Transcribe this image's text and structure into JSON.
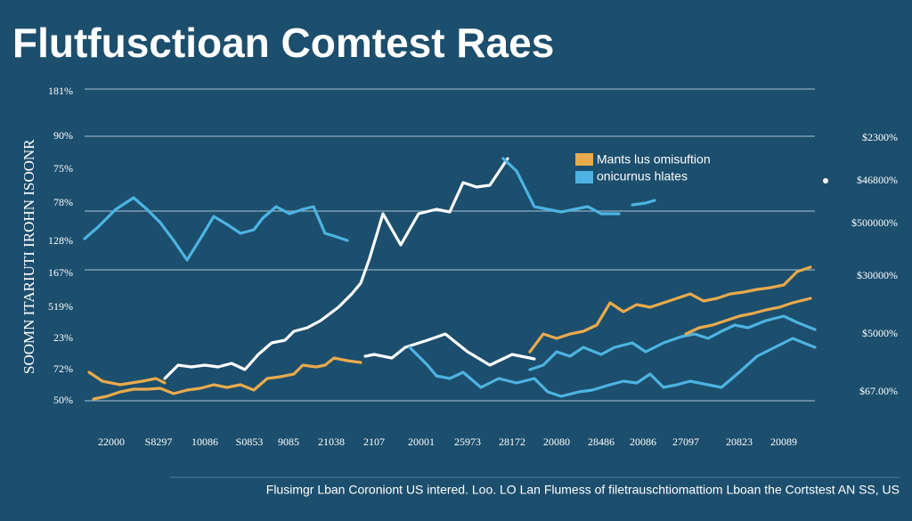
{
  "chart_data": {
    "type": "line",
    "title": "Flutfusctioan Comtest Raes",
    "y_axis_title": "SOOMN ITARIUTI IROHN ISOONR",
    "footer": "Flusimgr Lban Coroniont US  intered. Loo. LO Lan Flumess of filetrauschtiomattiom Lboan the Cortstest AN SS, US",
    "left_labels": [
      "181%",
      "90%",
      "75%",
      "78%",
      "128%",
      "167%",
      "519%",
      "23%",
      "72%",
      "50%"
    ],
    "right_labels": [
      "$2300%",
      "$46800%",
      "$500000%",
      "$30000%",
      "$5000%",
      "$67.00%"
    ],
    "x_labels": [
      "22000",
      "S8297",
      "10086",
      "S0853",
      "9085",
      "21038",
      "2107",
      "20001",
      "25973",
      "28172",
      "20080",
      "28486",
      "20086",
      "27097",
      "20823",
      "20089"
    ],
    "xlim": [
      0,
      820
    ],
    "ylim": [
      0,
      350
    ],
    "series": [
      {
        "color": "#ffffff",
        "x": [
          90,
          105,
          120,
          135,
          150,
          165,
          180,
          195,
          210,
          225,
          235,
          250,
          265,
          285,
          300,
          310,
          320,
          335,
          355,
          375,
          395,
          410,
          425,
          440,
          455,
          475,
          null,
          315,
          325,
          345,
          360,
          385,
          405,
          430,
          455,
          480,
          505
        ],
        "values": [
          25,
          40,
          38,
          40,
          38,
          42,
          35,
          52,
          65,
          68,
          78,
          82,
          90,
          105,
          120,
          132,
          160,
          210,
          175,
          210,
          215,
          212,
          245,
          240,
          242,
          272,
          null,
          50,
          52,
          48,
          60,
          68,
          75,
          55,
          40,
          52,
          47
        ]
      },
      {
        "name": "onicurnus hlates",
        "color": "#4db3e2",
        "x": [
          0,
          15,
          35,
          55,
          70,
          85,
          100,
          115,
          130,
          145,
          160,
          175,
          190,
          200,
          215,
          230,
          245,
          257,
          270,
          280,
          295,
          null,
          470,
          485,
          505,
          520,
          535,
          550,
          565,
          580,
          600,
          null,
          615,
          630,
          640,
          null,
          365,
          385,
          395,
          410,
          425,
          445,
          465,
          485,
          505,
          520,
          535,
          555,
          570,
          590,
          605,
          620,
          635,
          650,
          665,
          680,
          700,
          715,
          735,
          755,
          775,
          795,
          820,
          null,
          500,
          515,
          530,
          545,
          560,
          580,
          595,
          615,
          630,
          650,
          670,
          685,
          700,
          715,
          730,
          745,
          765,
          785,
          800,
          820
        ],
        "values": [
          182,
          195,
          215,
          228,
          215,
          200,
          180,
          158,
          182,
          207,
          198,
          188,
          192,
          205,
          218,
          210,
          215,
          218,
          188,
          185,
          180,
          null,
          272,
          258,
          218,
          215,
          212,
          215,
          218,
          210,
          210,
          null,
          220,
          222,
          225,
          null,
          60,
          40,
          28,
          25,
          32,
          15,
          25,
          20,
          25,
          10,
          5,
          10,
          12,
          18,
          22,
          20,
          30,
          15,
          18,
          22,
          18,
          15,
          32,
          50,
          60,
          70,
          60,
          null,
          35,
          40,
          55,
          50,
          60,
          52,
          60,
          65,
          55,
          65,
          72,
          75,
          70,
          78,
          85,
          82,
          90,
          95,
          88,
          80
        ]
      },
      {
        "name": "Mants lus omisuftion",
        "color": "#e9aa4c",
        "x": [
          5,
          20,
          40,
          65,
          80,
          90,
          null,
          10,
          25,
          40,
          55,
          70,
          85,
          100,
          115,
          130,
          145,
          160,
          175,
          190,
          205,
          220,
          235,
          245,
          260,
          270,
          280,
          295,
          310,
          null,
          500,
          515,
          530,
          545,
          560,
          575,
          590,
          605,
          620,
          635,
          650,
          665,
          680,
          695,
          710,
          725,
          740,
          755,
          770,
          785,
          800,
          815,
          null,
          675,
          690,
          705,
          720,
          735,
          750,
          765,
          780,
          795,
          815
        ],
        "values": [
          32,
          22,
          18,
          22,
          25,
          20,
          null,
          2,
          5,
          10,
          13,
          13,
          14,
          8,
          12,
          14,
          18,
          15,
          18,
          12,
          25,
          27,
          30,
          40,
          38,
          40,
          48,
          45,
          43,
          null,
          55,
          75,
          70,
          75,
          78,
          85,
          110,
          100,
          108,
          105,
          110,
          115,
          120,
          112,
          115,
          120,
          122,
          125,
          127,
          130,
          145,
          150,
          null,
          75,
          82,
          85,
          90,
          95,
          98,
          102,
          105,
          110,
          115
        ]
      }
    ]
  }
}
